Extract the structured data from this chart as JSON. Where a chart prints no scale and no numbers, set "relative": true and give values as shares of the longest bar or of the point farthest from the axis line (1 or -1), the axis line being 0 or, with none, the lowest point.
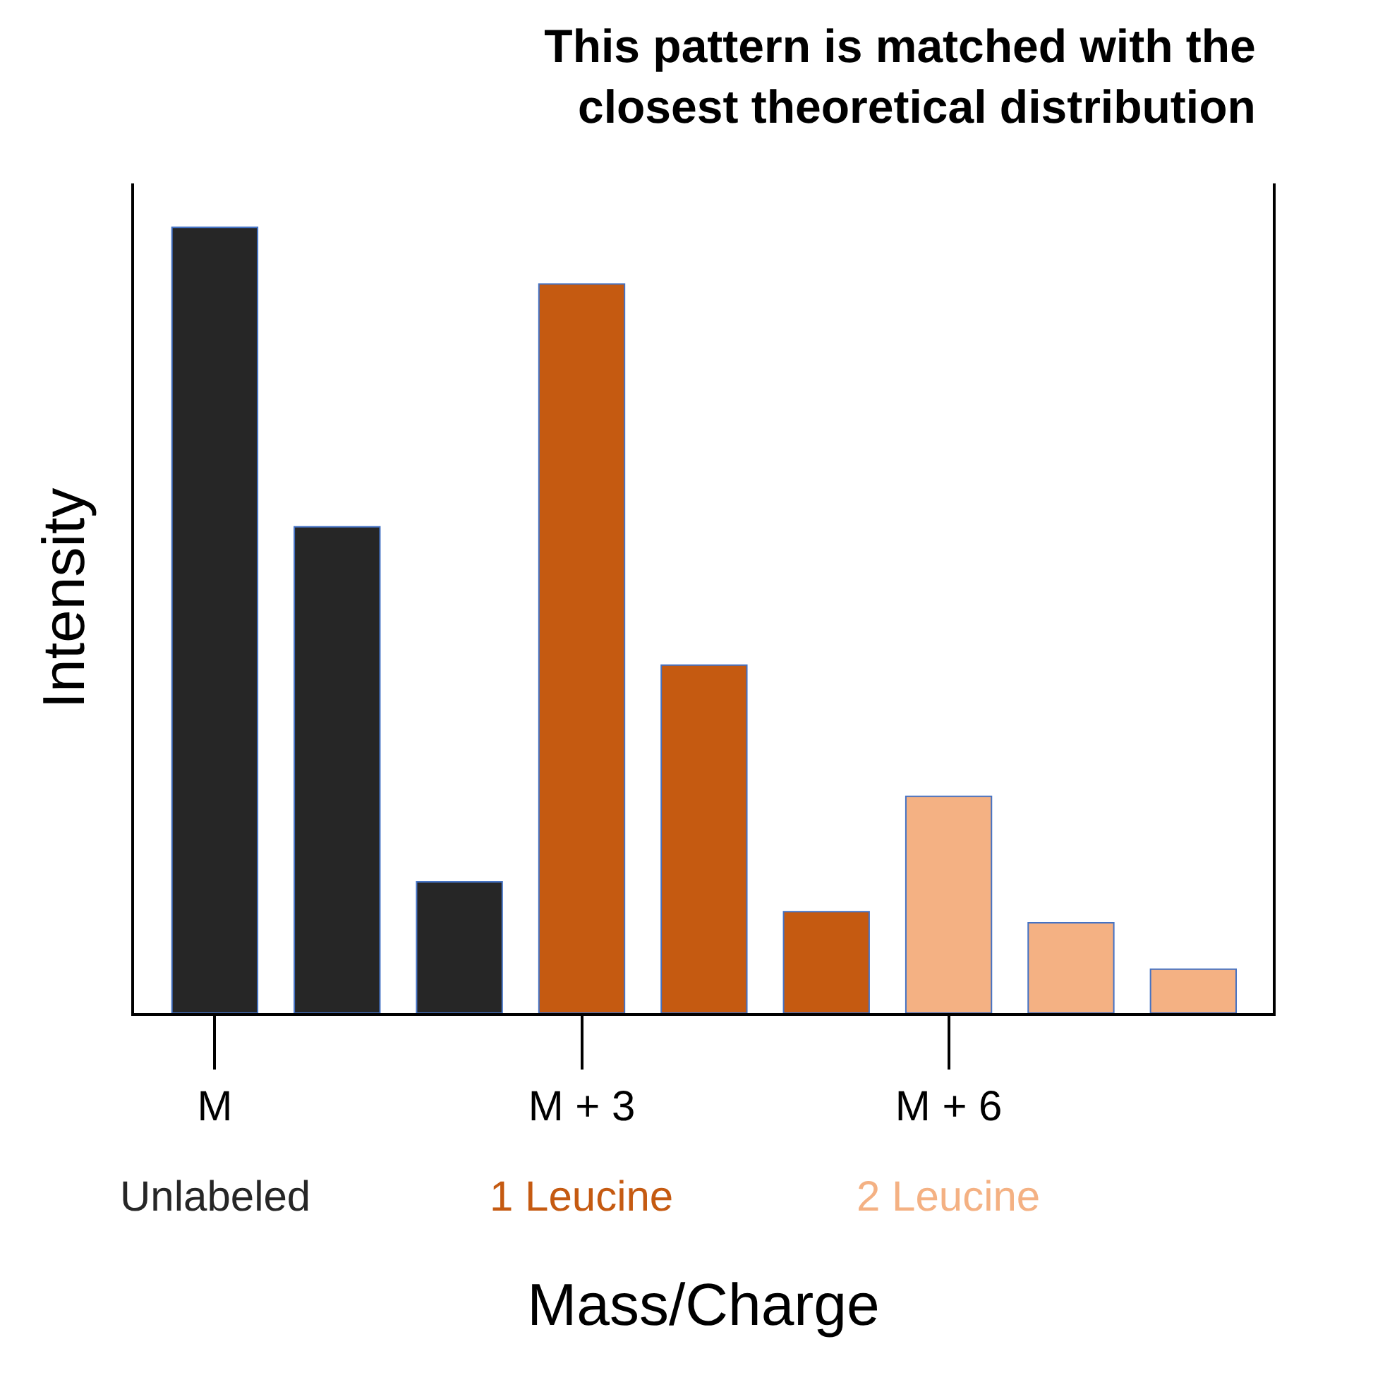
{
  "chart_data": {
    "type": "bar",
    "title": "This pattern is matched with the closest theoretical distribution",
    "xlabel": "Mass/Charge",
    "ylabel": "Intensity",
    "relative": true,
    "categories": [
      "M",
      null,
      null,
      "M + 3",
      null,
      null,
      "M + 6",
      null,
      null
    ],
    "values": [
      1,
      0.619,
      0.167,
      0.928,
      0.443,
      0.129,
      0.276,
      0.115,
      0.056
    ],
    "colors": [
      "#262626",
      "#262626",
      "#262626",
      "#c55a11",
      "#c55a11",
      "#c55a11",
      "#f4b183",
      "#f4b183",
      "#f4b183"
    ],
    "annotations": [
      "Unlabeled",
      "1 Leucine",
      "2 Leucine"
    ]
  }
}
